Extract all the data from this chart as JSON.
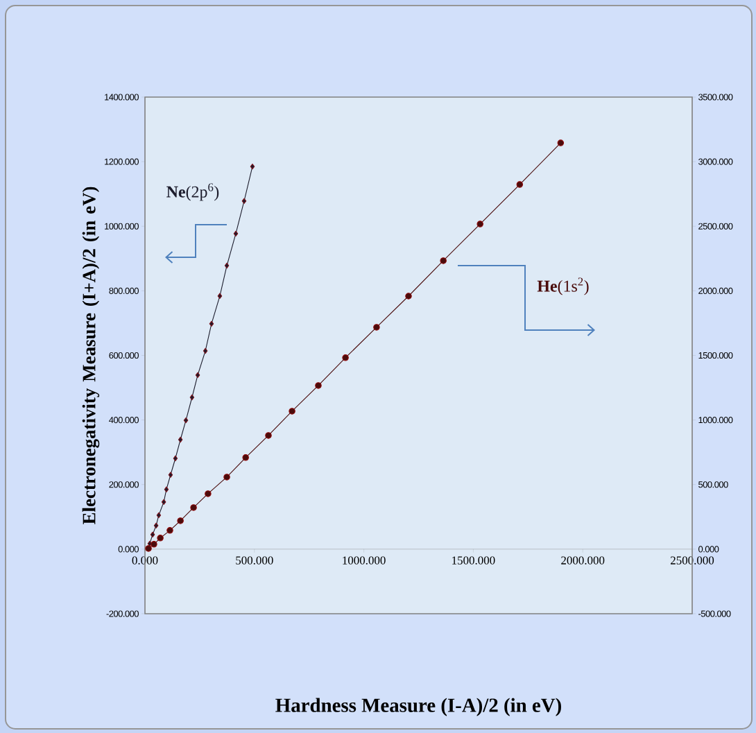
{
  "chart_data": {
    "type": "line",
    "xlabel": "Hardness Measure (I-A)/2 (in eV)",
    "ylabel": "Electronegativity Measure  (I+A)/2 (in eV)",
    "grid": false,
    "xlim": [
      0,
      2500
    ],
    "ylim": [
      -200,
      1400
    ],
    "y2lim": [
      -500,
      3500
    ],
    "xticks": [
      {
        "value": 0,
        "label": "0.000"
      },
      {
        "value": 500,
        "label": "500.000"
      },
      {
        "value": 1000,
        "label": "1000.000"
      },
      {
        "value": 1500,
        "label": "1500.000"
      },
      {
        "value": 2000,
        "label": "2000.000"
      },
      {
        "value": 2500,
        "label": "2500.000"
      }
    ],
    "yticks": [
      {
        "value": -200,
        "label": "-200.000"
      },
      {
        "value": 0,
        "label": "0.000"
      },
      {
        "value": 200,
        "label": "200.000"
      },
      {
        "value": 400,
        "label": "400.000"
      },
      {
        "value": 600,
        "label": "600.000"
      },
      {
        "value": 800,
        "label": "800.000"
      },
      {
        "value": 1000,
        "label": "1000.000"
      },
      {
        "value": 1200,
        "label": "1200.000"
      },
      {
        "value": 1400,
        "label": "1400.000"
      }
    ],
    "y2ticks": [
      {
        "value": -500,
        "label": "-500.000"
      },
      {
        "value": 0,
        "label": "0.000"
      },
      {
        "value": 500,
        "label": "500.000"
      },
      {
        "value": 1000,
        "label": "1000.000"
      },
      {
        "value": 1500,
        "label": "1500.000"
      },
      {
        "value": 2000,
        "label": "2000.000"
      },
      {
        "value": 2500,
        "label": "2500.000"
      },
      {
        "value": 3000,
        "label": "3000.000"
      },
      {
        "value": 3500,
        "label": "3500.000"
      }
    ],
    "series": [
      {
        "name": "**Ne**(2p$^{6}$)",
        "color": "#1c1c2c",
        "marker": "diamond",
        "line_style": "solid",
        "x": [
          13,
          22,
          35,
          51,
          63,
          86,
          98,
          117,
          139,
          162,
          187,
          215,
          241,
          276,
          304,
          342,
          374,
          415,
          453,
          491
        ],
        "values": [
          2,
          17,
          45,
          73,
          105,
          146,
          185,
          230,
          281,
          339,
          399,
          470,
          539,
          614,
          698,
          784,
          878,
          977,
          1078,
          1185
        ]
      },
      {
        "name": "**He**(1s$^{2}$)",
        "color": "#4a0c0c",
        "marker": "circle",
        "line_style": "solid",
        "axis": "y2",
        "x": [
          16,
          41,
          70,
          114,
          162,
          222,
          288,
          374,
          460,
          564,
          672,
          792,
          916,
          1058,
          1204,
          1363,
          1531,
          1712,
          1899
        ],
        "values": [
          5,
          38,
          86,
          145,
          220,
          322,
          429,
          558,
          709,
          880,
          1068,
          1267,
          1482,
          1718,
          1959,
          2233,
          2517,
          2823,
          3145
        ]
      }
    ]
  }
}
